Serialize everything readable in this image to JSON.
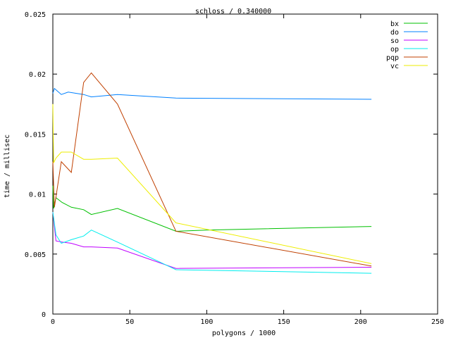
{
  "chart_data": {
    "type": "line",
    "title": "schloss / 0.340000",
    "xlabel": "polygons / 1000",
    "ylabel": "time / millisec",
    "xlim": [
      0,
      250
    ],
    "ylim": [
      0,
      0.025
    ],
    "xticks": [
      "0",
      "50",
      "100",
      "150",
      "200",
      "250"
    ],
    "yticks": [
      "0",
      "0.005",
      "0.01",
      "0.015",
      "0.02",
      "0.025"
    ],
    "grid": false,
    "legend_position": "top-right",
    "series": [
      {
        "name": "bx",
        "color": "#00c000",
        "x": [
          0,
          0.5,
          2,
          6,
          12,
          20,
          25,
          42,
          80,
          100,
          207
        ],
        "y": [
          0.0107,
          0.0088,
          0.0097,
          0.0093,
          0.0089,
          0.0087,
          0.0083,
          0.0088,
          0.0069,
          0.007,
          0.0073
        ]
      },
      {
        "name": "do",
        "color": "#0080ff",
        "x": [
          0,
          1,
          5.5,
          10,
          20,
          25,
          42,
          80,
          207
        ],
        "y": [
          0.0184,
          0.0188,
          0.0183,
          0.0185,
          0.0183,
          0.0181,
          0.0183,
          0.018,
          0.0179
        ]
      },
      {
        "name": "so",
        "color": "#c000ff",
        "x": [
          0,
          2,
          6,
          12,
          20,
          25,
          42,
          80,
          207
        ],
        "y": [
          0.0085,
          0.0061,
          0.006,
          0.0059,
          0.0056,
          0.0056,
          0.0055,
          0.0038,
          0.0039
        ]
      },
      {
        "name": "op",
        "color": "#00eeee",
        "x": [
          0,
          2,
          5.5,
          12,
          20,
          25,
          42,
          80,
          207
        ],
        "y": [
          0.0085,
          0.0066,
          0.0059,
          0.0062,
          0.0065,
          0.007,
          0.006,
          0.0037,
          0.0034
        ]
      },
      {
        "name": "pqp",
        "color": "#c04000",
        "x": [
          0,
          1,
          5.5,
          12,
          20,
          25,
          42,
          80,
          207
        ],
        "y": [
          0.0127,
          0.0089,
          0.0127,
          0.0118,
          0.0193,
          0.0201,
          0.0175,
          0.0069,
          0.004
        ]
      },
      {
        "name": "vc",
        "color": "#eeee00",
        "x": [
          0,
          0.5,
          2,
          5.5,
          12,
          20,
          25,
          42,
          80,
          207
        ],
        "y": [
          0.0175,
          0.0126,
          0.013,
          0.0135,
          0.0135,
          0.0129,
          0.0129,
          0.013,
          0.0076,
          0.0042
        ]
      }
    ]
  }
}
